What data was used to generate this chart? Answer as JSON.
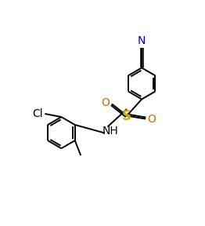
{
  "figsize": [
    2.62,
    2.88
  ],
  "dpi": 100,
  "bg_color": "#ffffff",
  "line_color": "#000000",
  "line_width": 1.4,
  "font_size": 9,
  "N_color": "#0000cd",
  "O_color": "#cc6600",
  "S_color": "#ccaa00",
  "ring_r": 0.4,
  "xlim": [
    0.0,
    5.2
  ],
  "ylim": [
    0.0,
    5.6
  ]
}
